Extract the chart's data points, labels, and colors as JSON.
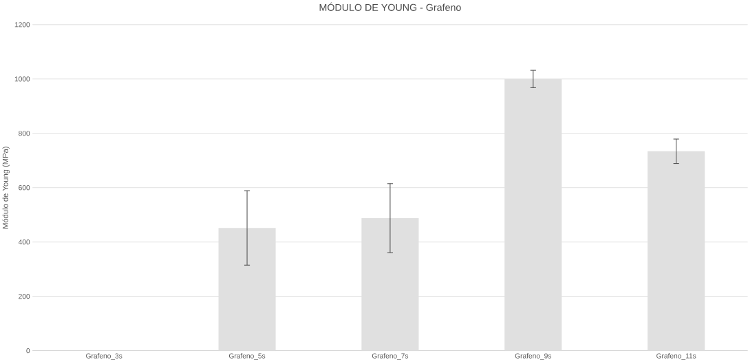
{
  "chart_data": {
    "type": "bar",
    "title": "MÓDULO DE YOUNG - Grafeno",
    "ylabel": "Módulo de Young (MPa)",
    "categories": [
      "Grafeno_3s",
      "Grafeno_5s",
      "Grafeno_7s",
      "Grafeno_9s",
      "Grafeno_11s"
    ],
    "values": [
      null,
      452,
      488,
      1000,
      734
    ],
    "errors": [
      null,
      137,
      127,
      32,
      45
    ],
    "color": "#e0e0e0",
    "ylim": [
      0,
      1200
    ],
    "yticks": [
      0,
      200,
      400,
      600,
      800,
      1000,
      1200
    ],
    "grid": "y"
  }
}
